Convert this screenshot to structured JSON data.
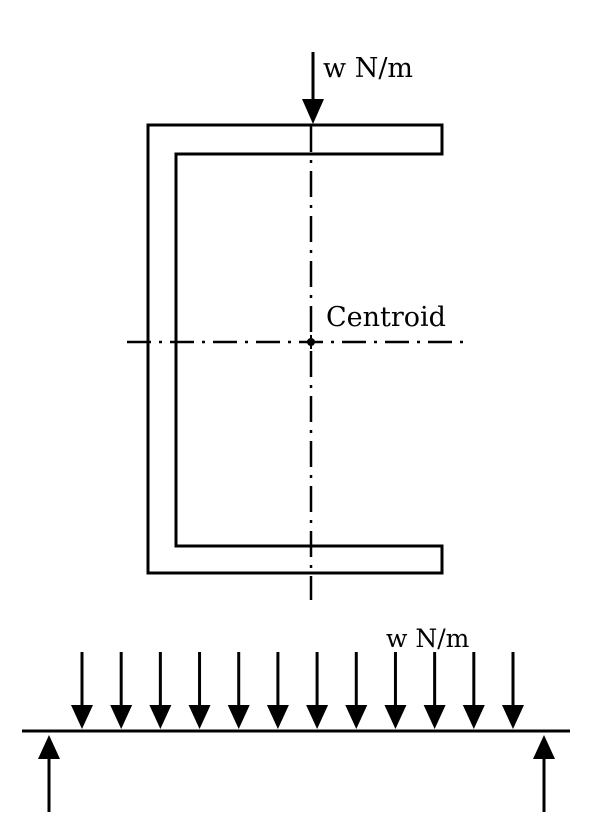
{
  "labels": {
    "top_load": "w N/m",
    "centroid": "Centroid",
    "distributed_load": "w N/m"
  },
  "beam": {
    "load_arrow_count": 12,
    "support_count": 2
  },
  "colors": {
    "stroke": "#000000",
    "background": "#ffffff"
  }
}
